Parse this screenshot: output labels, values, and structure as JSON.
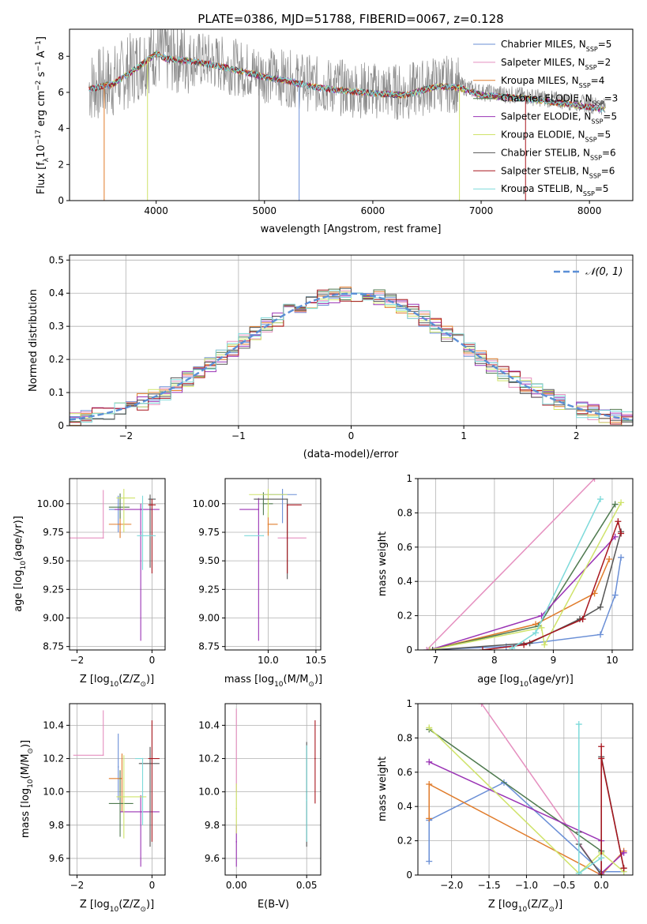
{
  "figure_title": "PLATE=0386, MJD=51788, FIBERID=0067, z=0.128",
  "colors": {
    "Chabrier MILES": "#6a8fd6",
    "Salpeter MILES": "#e58fbf",
    "Kroupa MILES": "#e07b2a",
    "Chabrier ELODIE": "#4f7a4f",
    "Salpeter ELODIE": "#9a33b5",
    "Kroupa ELODIE": "#cfe36a",
    "Chabrier STELIB": "#555555",
    "Salpeter STELIB": "#a8161e",
    "Kroupa STELIB": "#7ddada",
    "normal": "#5b8fd6"
  },
  "chart_data": [
    {
      "type": "line",
      "title": "PLATE=0386, MJD=51788, FIBERID=0067, z=0.128",
      "xlabel": "wavelength [Angstrom, rest frame]",
      "ylabel_main": "Flux [f",
      "ylabel_sub": "λ",
      "ylabel_rest": "10",
      "ylabel_exp1": "−17",
      "ylabel_mid": " erg cm",
      "ylabel_exp2": "−2",
      "ylabel_s": " s",
      "ylabel_exp3": "−1",
      "ylabel_end": " A",
      "ylabel_exp4": "−1",
      "ylabel_close": "]",
      "xlim": [
        3200,
        8400
      ],
      "ylim": [
        0,
        9.5
      ],
      "xticks": [
        4000,
        5000,
        6000,
        7000,
        8000
      ],
      "yticks": [
        0,
        2,
        4,
        6,
        8
      ],
      "grid": false,
      "legend_position": "top-right",
      "legend": [
        {
          "label": "Chabrier MILES, N",
          "sub": "SSP",
          "tail": "=5"
        },
        {
          "label": "Salpeter MILES, N",
          "sub": "SSP",
          "tail": "=2"
        },
        {
          "label": "Kroupa MILES, N",
          "sub": "SSP",
          "tail": "=4"
        },
        {
          "label": "Chabrier ELODIE, N",
          "sub": "SSP",
          "tail": "=3"
        },
        {
          "label": "Salpeter ELODIE, N",
          "sub": "SSP",
          "tail": "=5"
        },
        {
          "label": "Kroupa ELODIE, N",
          "sub": "SSP",
          "tail": "=5"
        },
        {
          "label": "Chabrier STELIB, N",
          "sub": "SSP",
          "tail": "=6"
        },
        {
          "label": "Salpeter STELIB, N",
          "sub": "SSP",
          "tail": "=6"
        },
        {
          "label": "Kroupa STELIB, N",
          "sub": "SSP",
          "tail": "=5"
        }
      ],
      "data_envelope": {
        "x": [
          3380,
          3500,
          3600,
          3800,
          4000,
          4100,
          4300,
          4500,
          4800,
          5000,
          5200,
          5500,
          5800,
          6000,
          6300,
          6600,
          6800,
          7000,
          7400,
          7800,
          8150
        ],
        "y": [
          6.3,
          6.5,
          6.6,
          7.4,
          8.3,
          8.0,
          7.9,
          7.7,
          7.3,
          7.0,
          6.8,
          6.4,
          6.2,
          6.1,
          6.0,
          6.5,
          6.4,
          6.0,
          5.8,
          5.5,
          5.2
        ]
      }
    },
    {
      "type": "step",
      "xlabel": "(data-model)/error",
      "ylabel": "Normed distribution",
      "xlim": [
        -2.5,
        2.5
      ],
      "ylim": [
        0,
        0.515
      ],
      "xticks": [
        -2,
        -1,
        0,
        1,
        2
      ],
      "yticks": [
        0.0,
        0.1,
        0.2,
        0.3,
        0.4,
        0.5
      ],
      "grid": true,
      "legend_position": "top-right",
      "legend_label": "𝒩(0, 1)",
      "curve": "normal(0,1)"
    },
    {
      "type": "scatter",
      "xlabel_main": "Z [log",
      "xlabel_sub": "10",
      "xlabel_rest": "(Z/Z",
      "xlabel_sub2": "⊙",
      "xlabel_close": ")]",
      "ylabel_main": "age  [log",
      "ylabel_sub": "10",
      "ylabel_rest": "(age/yr)]",
      "xlim": [
        -2.2,
        0.35
      ],
      "ylim": [
        8.72,
        10.22
      ],
      "xticks": [
        -2,
        0
      ],
      "yticks": [
        8.75,
        9.0,
        9.25,
        9.5,
        9.75,
        10.0
      ],
      "ytick_labels": [
        "8.75",
        "9.00",
        "9.25",
        "9.50",
        "9.75",
        "10.00"
      ],
      "points": [
        {
          "model": "Chabrier MILES",
          "x": -0.9,
          "y": 9.95,
          "xerr": [
            0.25,
            0.2
          ],
          "yerr": [
            0.2,
            0.12
          ]
        },
        {
          "model": "Salpeter MILES",
          "x": -1.3,
          "y": 9.7,
          "xerr": [
            0.95,
            0.0
          ],
          "yerr": [
            0.0,
            0.42
          ]
        },
        {
          "model": "Kroupa MILES",
          "x": -0.85,
          "y": 9.82,
          "xerr": [
            0.3,
            0.3
          ],
          "yerr": [
            0.12,
            0.1
          ]
        },
        {
          "model": "Chabrier ELODIE",
          "x": -0.85,
          "y": 9.97,
          "xerr": [
            0.3,
            0.25
          ],
          "yerr": [
            0.1,
            0.12
          ]
        },
        {
          "model": "Salpeter ELODIE",
          "x": -0.3,
          "y": 9.95,
          "xerr": [
            0.7,
            0.5
          ],
          "yerr": [
            1.15,
            0.05
          ]
        },
        {
          "model": "Kroupa ELODIE",
          "x": -0.75,
          "y": 10.05,
          "xerr": [
            0.2,
            0.3
          ],
          "yerr": [
            0.3,
            0.08
          ]
        },
        {
          "model": "Chabrier STELIB",
          "x": -0.05,
          "y": 10.04,
          "xerr": [
            0.05,
            0.15
          ],
          "yerr": [
            0.6,
            0.04
          ]
        },
        {
          "model": "Salpeter STELIB",
          "x": 0.0,
          "y": 9.99,
          "xerr": [
            0.1,
            0.1
          ],
          "yerr": [
            0.6,
            0.05
          ]
        },
        {
          "model": "Kroupa STELIB",
          "x": -0.25,
          "y": 9.72,
          "xerr": [
            0.15,
            0.35
          ],
          "yerr": [
            0.3,
            0.35
          ]
        }
      ]
    },
    {
      "type": "scatter",
      "xlabel_main": "mass [log",
      "xlabel_sub": "10",
      "xlabel_rest": "(M/M",
      "xlabel_sub2": "⊙",
      "xlabel_close": ")]",
      "xlim": [
        9.55,
        10.55
      ],
      "ylim": [
        8.72,
        10.22
      ],
      "xticks": [
        10.0,
        10.5
      ],
      "xtick_labels": [
        "10.0",
        "10.5"
      ],
      "yticks": [
        8.75,
        9.0,
        9.25,
        9.5,
        9.75,
        10.0
      ],
      "ytick_labels": [
        "8.75",
        "9.00",
        "9.25",
        "9.50",
        "9.75",
        "10.00"
      ],
      "points": [
        {
          "model": "Chabrier MILES",
          "x": 10.15,
          "y": 10.08,
          "xerr": [
            0.2,
            0.15
          ],
          "yerr": [
            0.25,
            0.05
          ]
        },
        {
          "model": "Salpeter MILES",
          "x": 10.2,
          "y": 9.7,
          "xerr": [
            0.1,
            0.2
          ],
          "yerr": [
            0.0,
            0.0
          ]
        },
        {
          "model": "Kroupa MILES",
          "x": 10.0,
          "y": 9.82,
          "xerr": [
            0.0,
            0.1
          ],
          "yerr": [
            0.1,
            0.1
          ]
        },
        {
          "model": "Chabrier ELODIE",
          "x": 9.95,
          "y": 10.0,
          "xerr": [
            0.0,
            0.1
          ],
          "yerr": [
            0.1,
            0.1
          ]
        },
        {
          "model": "Salpeter ELODIE",
          "x": 9.9,
          "y": 9.95,
          "xerr": [
            0.2,
            0.0
          ],
          "yerr": [
            1.15,
            0.1
          ]
        },
        {
          "model": "Kroupa ELODIE",
          "x": 10.0,
          "y": 10.08,
          "xerr": [
            0.2,
            0.2
          ],
          "yerr": [
            0.2,
            0.05
          ]
        },
        {
          "model": "Chabrier STELIB",
          "x": 10.2,
          "y": 10.04,
          "xerr": [
            0.35,
            0.0
          ],
          "yerr": [
            0.7,
            0.0
          ]
        },
        {
          "model": "Salpeter STELIB",
          "x": 10.2,
          "y": 9.99,
          "xerr": [
            0.0,
            0.15
          ],
          "yerr": [
            0.6,
            0.0
          ]
        },
        {
          "model": "Kroupa STELIB",
          "x": 9.95,
          "y": 9.72,
          "xerr": [
            0.2,
            0.0
          ],
          "yerr": [
            0.0,
            0.0
          ]
        }
      ]
    },
    {
      "type": "line",
      "xlabel_main": "age  [log",
      "xlabel_sub": "10",
      "xlabel_rest": "(age/yr)]",
      "ylabel": "mass weight",
      "xlim": [
        6.7,
        10.35
      ],
      "ylim": [
        0,
        1.0
      ],
      "xticks": [
        7,
        8,
        9,
        10
      ],
      "yticks": [
        0.0,
        0.2,
        0.4,
        0.6,
        0.8,
        1.0
      ],
      "grid": true,
      "series": [
        {
          "model": "Chabrier MILES",
          "x": [
            6.85,
            8.2,
            9.8,
            10.05,
            10.15
          ],
          "y": [
            0.0,
            0.02,
            0.09,
            0.32,
            0.54
          ]
        },
        {
          "model": "Salpeter MILES",
          "x": [
            6.85,
            9.7
          ],
          "y": [
            0.0,
            1.0
          ]
        },
        {
          "model": "Kroupa MILES",
          "x": [
            6.9,
            8.7,
            9.7,
            9.95
          ],
          "y": [
            0.0,
            0.15,
            0.33,
            0.53
          ]
        },
        {
          "model": "Chabrier ELODIE",
          "x": [
            6.9,
            8.75,
            10.05
          ],
          "y": [
            0.0,
            0.14,
            0.85
          ]
        },
        {
          "model": "Salpeter ELODIE",
          "x": [
            6.9,
            8.8,
            10.05
          ],
          "y": [
            0.0,
            0.2,
            0.66
          ]
        },
        {
          "model": "Kroupa ELODIE",
          "x": [
            6.9,
            8.8,
            8.85,
            10.15
          ],
          "y": [
            0.0,
            0.13,
            0.03,
            0.86
          ]
        },
        {
          "model": "Chabrier STELIB",
          "x": [
            6.95,
            8.6,
            9.45,
            9.8,
            10.15
          ],
          "y": [
            0.0,
            0.04,
            0.18,
            0.25,
            0.69
          ]
        },
        {
          "model": "Salpeter STELIB",
          "x": [
            7.8,
            8.5,
            9.5,
            10.1,
            10.15
          ],
          "y": [
            0.0,
            0.03,
            0.18,
            0.75,
            0.68
          ]
        },
        {
          "model": "Kroupa STELIB",
          "x": [
            8.3,
            8.7,
            9.8
          ],
          "y": [
            0.01,
            0.1,
            0.88
          ]
        }
      ]
    },
    {
      "type": "scatter",
      "xlabel_main": "Z [log",
      "xlabel_sub": "10",
      "xlabel_rest": "(Z/Z",
      "xlabel_sub2": "⊙",
      "xlabel_close": ")]",
      "ylabel_main": "mass [log",
      "ylabel_sub": "10",
      "ylabel_rest": "(M/M",
      "ylabel_sub2": "⊙",
      "ylabel_close": ")]",
      "xlim": [
        -2.2,
        0.35
      ],
      "ylim": [
        9.5,
        10.53
      ],
      "xticks": [
        -2,
        0
      ],
      "yticks": [
        9.6,
        9.8,
        10.0,
        10.2,
        10.4
      ],
      "ytick_labels": [
        "9.6",
        "9.8",
        "10.0",
        "10.2",
        "10.4"
      ],
      "points": [
        {
          "model": "Chabrier MILES",
          "x": -0.9,
          "y": 10.15,
          "xerr": [
            0.0,
            0.0
          ],
          "yerr": [
            0.2,
            0.2
          ]
        },
        {
          "model": "Salpeter MILES",
          "x": -1.3,
          "y": 10.22,
          "xerr": [
            0.8,
            0.0
          ],
          "yerr": [
            0.0,
            0.27
          ]
        },
        {
          "model": "Kroupa MILES",
          "x": -0.8,
          "y": 10.08,
          "xerr": [
            0.35,
            0.0
          ],
          "yerr": [
            0.2,
            0.15
          ]
        },
        {
          "model": "Chabrier ELODIE",
          "x": -0.85,
          "y": 9.93,
          "xerr": [
            0.3,
            0.35
          ],
          "yerr": [
            0.2,
            0.2
          ]
        },
        {
          "model": "Salpeter ELODIE",
          "x": -0.3,
          "y": 9.88,
          "xerr": [
            0.55,
            0.5
          ],
          "yerr": [
            0.33,
            0.1
          ]
        },
        {
          "model": "Kroupa ELODIE",
          "x": -0.75,
          "y": 9.97,
          "xerr": [
            0.2,
            0.6
          ],
          "yerr": [
            0.25,
            0.25
          ]
        },
        {
          "model": "Chabrier STELIB",
          "x": -0.05,
          "y": 10.17,
          "xerr": [
            0.3,
            0.25
          ],
          "yerr": [
            0.5,
            0.1
          ]
        },
        {
          "model": "Salpeter STELIB",
          "x": 0.0,
          "y": 10.2,
          "xerr": [
            0.1,
            0.2
          ],
          "yerr": [
            0.5,
            0.23
          ]
        },
        {
          "model": "Kroupa STELIB",
          "x": -0.25,
          "y": 10.2,
          "xerr": [
            0.2,
            0.0
          ],
          "yerr": [
            0.4,
            0.0
          ]
        }
      ]
    },
    {
      "type": "scatter",
      "xlabel": "E(B-V)",
      "xlim": [
        -0.008,
        0.06
      ],
      "ylim": [
        9.5,
        10.53
      ],
      "xticks": [
        0.0,
        0.05
      ],
      "xtick_labels": [
        "0.00",
        "0.05"
      ],
      "yticks": [
        9.6,
        9.8,
        10.0,
        10.2,
        10.4
      ],
      "ytick_labels": [
        "9.6",
        "9.8",
        "10.0",
        "10.2",
        "10.4"
      ],
      "points": [
        {
          "model": "Salpeter MILES",
          "x": 0.0,
          "y": 10.2,
          "ylo": 10.0,
          "yhi": 10.5
        },
        {
          "model": "Salpeter ELODIE",
          "x": 0.0,
          "y": 9.7,
          "ylo": 9.55,
          "yhi": 9.8
        },
        {
          "model": "Kroupa ELODIE",
          "x": 0.0,
          "y": 9.9,
          "ylo": 9.75,
          "yhi": 10.05
        },
        {
          "model": "Chabrier STELIB",
          "x": 0.05,
          "y": 10.0,
          "ylo": 9.67,
          "yhi": 10.3
        },
        {
          "model": "Kroupa STELIB",
          "x": 0.05,
          "y": 9.95,
          "ylo": 9.7,
          "yhi": 10.28
        },
        {
          "model": "Salpeter STELIB",
          "x": 0.056,
          "y": 10.2,
          "ylo": 9.93,
          "yhi": 10.43
        }
      ]
    },
    {
      "type": "line",
      "xlabel_main": "Z [log",
      "xlabel_sub": "10",
      "xlabel_rest": "(Z/Z",
      "xlabel_sub2": "⊙",
      "xlabel_close": ")]",
      "ylabel": "mass weight",
      "xlim": [
        -2.45,
        0.42
      ],
      "ylim": [
        0,
        1.0
      ],
      "xticks": [
        -2.0,
        -1.5,
        -1.0,
        -0.5,
        0.0
      ],
      "xtick_labels": [
        "−2.0",
        "−1.5",
        "−1.0",
        "−0.5",
        "0.0"
      ],
      "yticks": [
        0.0,
        0.2,
        0.4,
        0.6,
        0.8,
        1.0
      ],
      "grid": true,
      "series": [
        {
          "model": "Chabrier MILES",
          "x": [
            -2.3,
            -2.3,
            -1.3,
            0.0,
            0.3
          ],
          "y": [
            0.08,
            0.32,
            0.54,
            0.02,
            0.02
          ]
        },
        {
          "model": "Salpeter MILES",
          "x": [
            -1.6,
            0.0
          ],
          "y": [
            1.0,
            0.0
          ]
        },
        {
          "model": "Kroupa MILES",
          "x": [
            -2.3,
            -2.3,
            0.0,
            0.3
          ],
          "y": [
            0.33,
            0.53,
            0.0,
            0.14
          ]
        },
        {
          "model": "Chabrier ELODIE",
          "x": [
            -2.3,
            0.0,
            0.0
          ],
          "y": [
            0.85,
            0.14,
            0.02
          ]
        },
        {
          "model": "Salpeter ELODIE",
          "x": [
            -2.3,
            0.0,
            0.0,
            0.3
          ],
          "y": [
            0.66,
            0.2,
            0.01,
            0.13
          ]
        },
        {
          "model": "Kroupa ELODIE",
          "x": [
            -2.3,
            -0.3,
            0.0,
            0.3
          ],
          "y": [
            0.86,
            0.01,
            0.13,
            0.02
          ]
        },
        {
          "model": "Chabrier STELIB",
          "x": [
            -0.3,
            -0.3,
            0.0,
            0.0,
            0.3
          ],
          "y": [
            0.25,
            0.18,
            0.0,
            0.69,
            0.04
          ]
        },
        {
          "model": "Salpeter STELIB",
          "x": [
            0.0,
            0.0,
            0.0,
            0.3
          ],
          "y": [
            0.0,
            0.75,
            0.68,
            0.04
          ]
        },
        {
          "model": "Kroupa STELIB",
          "x": [
            -0.3,
            -0.3,
            0.0
          ],
          "y": [
            0.88,
            0.01,
            0.1
          ]
        }
      ]
    }
  ]
}
